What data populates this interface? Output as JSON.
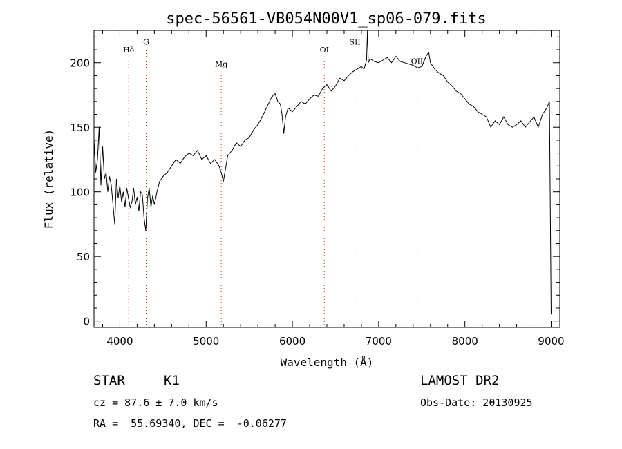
{
  "chart_data": {
    "type": "line",
    "title": "spec-56561-VB054N00V1_sp06-079.fits",
    "xlabel": "Wavelength (Å)",
    "ylabel": "Flux (relative)",
    "xlim": [
      3700,
      9100
    ],
    "ylim": [
      -5,
      225
    ],
    "x_ticks": [
      4000,
      5000,
      6000,
      7000,
      8000,
      9000
    ],
    "y_ticks": [
      0,
      50,
      100,
      150,
      200
    ],
    "grid": false,
    "legend": "none",
    "series": [
      {
        "x": [
          3700,
          3720,
          3740,
          3760,
          3780,
          3800,
          3820,
          3840,
          3860,
          3880,
          3900,
          3920,
          3940,
          3960,
          3980,
          4000,
          4020,
          4040,
          4060,
          4080,
          4100,
          4120,
          4140,
          4160,
          4180,
          4200,
          4220,
          4240,
          4260,
          4280,
          4300,
          4320,
          4340,
          4360,
          4380,
          4400,
          4430,
          4460,
          4500,
          4550,
          4600,
          4650,
          4700,
          4750,
          4800,
          4850,
          4900,
          4950,
          5000,
          5050,
          5100,
          5150,
          5175,
          5200,
          5250,
          5300,
          5350,
          5400,
          5450,
          5500,
          5550,
          5600,
          5650,
          5700,
          5750,
          5780,
          5800,
          5830,
          5860,
          5880,
          5900,
          5920,
          5950,
          6000,
          6050,
          6100,
          6150,
          6200,
          6250,
          6300,
          6350,
          6400,
          6450,
          6500,
          6550,
          6600,
          6650,
          6700,
          6750,
          6800,
          6830,
          6860,
          6870,
          6880,
          6900,
          6950,
          7000,
          7050,
          7100,
          7150,
          7200,
          7250,
          7300,
          7350,
          7400,
          7450,
          7500,
          7550,
          7580,
          7600,
          7650,
          7700,
          7750,
          7800,
          7850,
          7900,
          7950,
          8000,
          8050,
          8100,
          8150,
          8200,
          8250,
          8300,
          8350,
          8400,
          8450,
          8500,
          8550,
          8600,
          8650,
          8700,
          8750,
          8800,
          8850,
          8900,
          8950,
          8980,
          9000
        ],
        "y": [
          140,
          115,
          125,
          150,
          105,
          135,
          110,
          115,
          100,
          112,
          105,
          90,
          75,
          110,
          95,
          105,
          92,
          100,
          88,
          103,
          95,
          88,
          92,
          103,
          90,
          96,
          85,
          100,
          98,
          80,
          70,
          95,
          103,
          88,
          97,
          90,
          100,
          108,
          112,
          115,
          120,
          125,
          122,
          127,
          130,
          128,
          132,
          125,
          128,
          122,
          125,
          120,
          115,
          108,
          128,
          132,
          138,
          135,
          140,
          142,
          148,
          152,
          158,
          165,
          172,
          175,
          176,
          170,
          168,
          160,
          145,
          158,
          165,
          162,
          166,
          170,
          168,
          172,
          175,
          174,
          180,
          183,
          178,
          182,
          188,
          186,
          190,
          193,
          195,
          197,
          195,
          202,
          225,
          200,
          203,
          201,
          200,
          202,
          204,
          200,
          205,
          201,
          200,
          199,
          198,
          196,
          197,
          205,
          208,
          200,
          195,
          192,
          190,
          185,
          182,
          178,
          176,
          172,
          168,
          166,
          162,
          160,
          158,
          150,
          155,
          152,
          158,
          152,
          150,
          152,
          155,
          150,
          154,
          158,
          150,
          160,
          165,
          170,
          5
        ]
      }
    ],
    "annotations": [
      {
        "label": "Hδ",
        "x": 4102,
        "label_y": 208
      },
      {
        "label": "G",
        "x": 4305,
        "label_y": 214
      },
      {
        "label": "Mg",
        "x": 5175,
        "label_y": 197
      },
      {
        "label": "OI",
        "x": 6370,
        "label_y": 208
      },
      {
        "label": "SII",
        "x": 6725,
        "label_y": 214
      },
      {
        "label": "OII",
        "x": 7445,
        "label_y": 199
      }
    ]
  },
  "info": {
    "class": "STAR",
    "subclass": "K1",
    "redshift": "cz = 87.6 ± 7.0 km/s",
    "coords": "RA =  55.69340, DEC =  -0.06277",
    "survey": "LAMOST DR2",
    "obs_date": "Obs-Date: 20130925"
  }
}
